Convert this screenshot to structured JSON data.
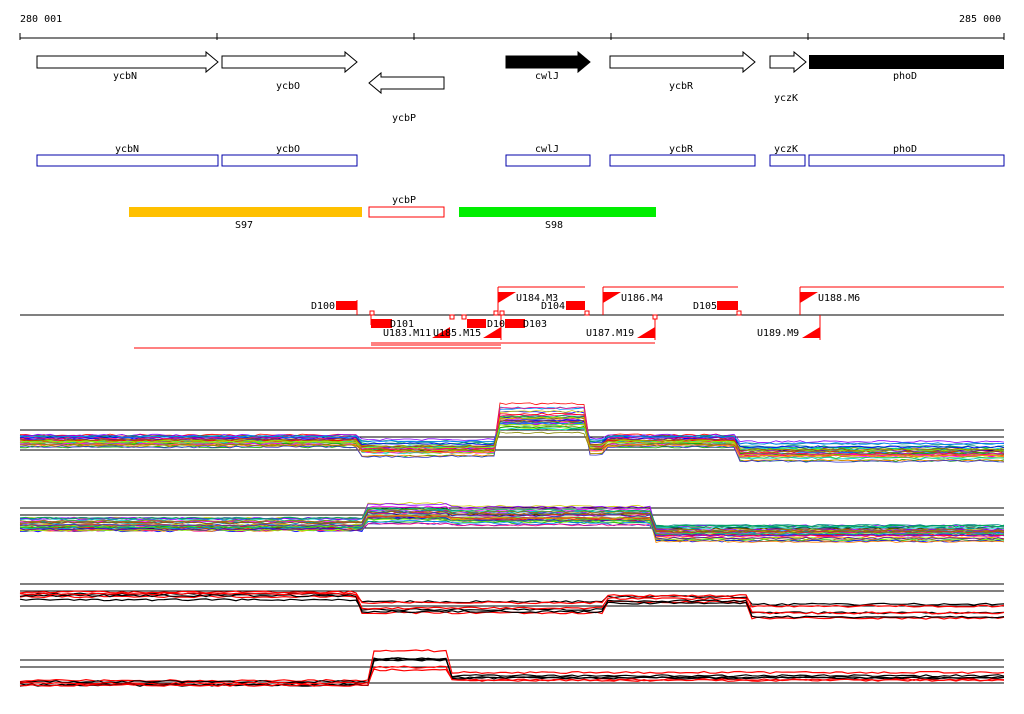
{
  "coords": {
    "start": "280 001",
    "end": "285 000"
  },
  "genes": [
    {
      "name": "ycbN",
      "strand": "+",
      "fill": "white"
    },
    {
      "name": "ycbO",
      "strand": "+",
      "fill": "white"
    },
    {
      "name": "ycbP",
      "strand": "-",
      "fill": "white"
    },
    {
      "name": "cwlJ",
      "strand": "+",
      "fill": "black"
    },
    {
      "name": "ycbR",
      "strand": "+",
      "fill": "white"
    },
    {
      "name": "yczK",
      "strand": "+",
      "fill": "white"
    },
    {
      "name": "phoD",
      "strand": "+",
      "fill": "black"
    }
  ],
  "gene_boxes": [
    "ycbN",
    "ycbO",
    "ycbP",
    "cwlJ",
    "ycbR",
    "yczK",
    "phoD"
  ],
  "regions": [
    {
      "name": "S97",
      "color": "#ffc000"
    },
    {
      "name": "S98",
      "color": "#00ee00"
    }
  ],
  "features": {
    "downshifts": [
      "D100",
      "D101",
      "D10",
      "D103",
      "D104",
      "D105"
    ],
    "upshifts": [
      "U184.M3",
      "U186.M4",
      "U188.M6",
      "U183.M11",
      "U185.M15",
      "U187.M19",
      "U189.M9"
    ]
  },
  "colors": {
    "feature": "#ff0000",
    "box_outline": "#0000aa",
    "axis": "#000000"
  }
}
